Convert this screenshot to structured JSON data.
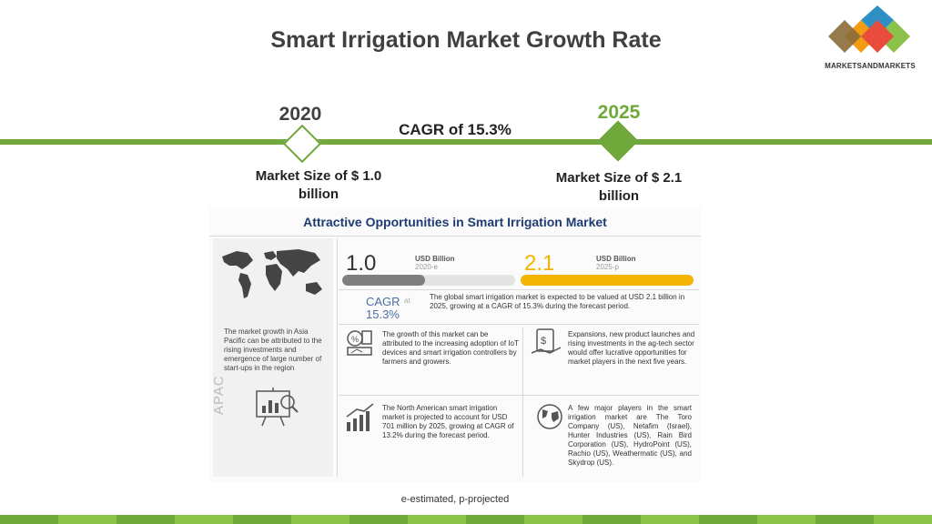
{
  "title": "Smart Irrigation Market Growth Rate",
  "logo": {
    "text": "MARKETSANDMARKETS",
    "colors": [
      "#2e8fc4",
      "#e74c3c",
      "#8bc34a",
      "#f39c12"
    ]
  },
  "timeline": {
    "start_year": "2020",
    "end_year": "2025",
    "cagr": "CAGR of 15.3%",
    "start_size": "Market Size of $ 1.0 billion",
    "end_size": "Market Size of $ 2.1 billion",
    "accent": "#71a83b"
  },
  "infographic": {
    "title": "Attractive Opportunities in Smart Irrigation Market",
    "value_2020": "1.0",
    "unit_2020": "USD Billion",
    "year_2020": "2020-e",
    "value_2025": "2.1",
    "unit_2025": "USD Billion",
    "year_2025": "2025-p",
    "bar_2020_fraction": 0.48,
    "bar_2025_fraction": 1.0,
    "cagr_label": "CAGR",
    "cagr_label_suffix": "at",
    "cagr_value": "15.3%",
    "global_text": "The global smart irrigation market is expected to be valued at USD 2.1 billion in 2025, growing at a CAGR of 15.3% during the forecast period.",
    "apac_text": "The market growth in Asia Pacific can be attributed to the rising investments and emergence of large number of start-ups in the region",
    "apac_label": "APAC",
    "iot_text": "The growth of this market can be attributed to the increasing adoption of IoT devices and smart irrigation controllers by farmers and growers.",
    "expansion_text": "Expansions, new product launches and rising investments in the ag-tech sector would offer lucrative opportunities for market players in the next five years.",
    "na_text": "The North American smart irrigation market is projected to account for USD 701 million by 2025, growing at CAGR of 13.2% during the forecast period.",
    "players_text": "A few major players in the smart irrigation market are The Toro Company (US), Netafim (Israel), Hunter Industries (US), Rain Bird Corporation (US), HydroPoint (US), Rachio (US), Weathermatic (US), and Skydrop (US)."
  },
  "footnote": "e-estimated, p-projected",
  "strip_colors": [
    "#71a83b",
    "#8bc34a"
  ]
}
